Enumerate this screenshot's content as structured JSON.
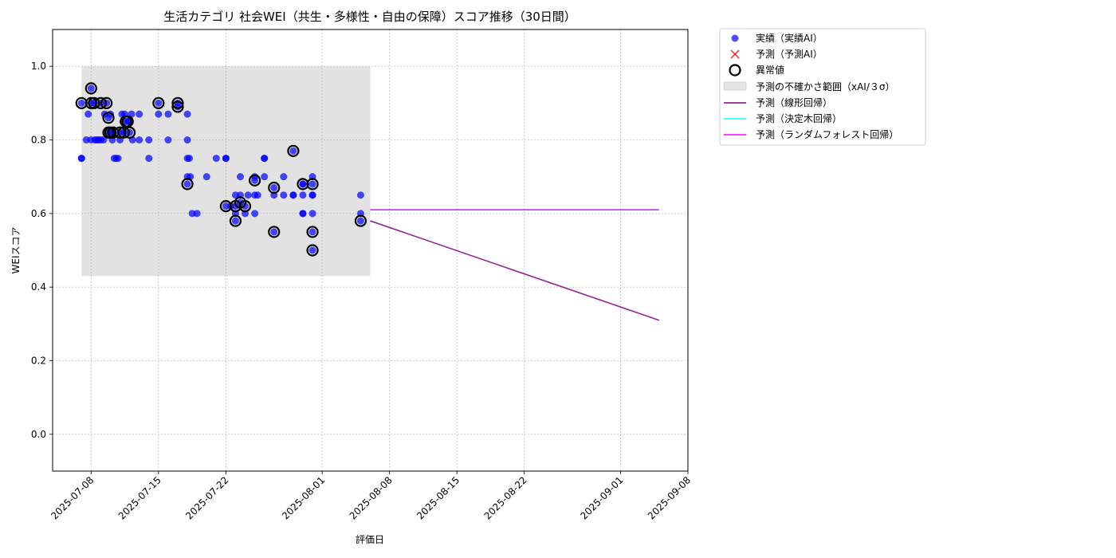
{
  "chart_data": {
    "type": "scatter",
    "title": "生活カテゴリ 社会WEI（共生・多様性・自由の保障）スコア推移（30日間）",
    "xlabel": "評価日",
    "ylabel": "WEIスコア",
    "xlim": [
      "2025-07-04",
      "2025-09-08"
    ],
    "ylim": [
      -0.1,
      1.1
    ],
    "x_ticks": [
      "2025-07-08",
      "2025-07-15",
      "2025-07-22",
      "2025-08-01",
      "2025-08-08",
      "2025-08-15",
      "2025-08-22",
      "2025-09-01",
      "2025-09-08"
    ],
    "y_ticks": [
      "0.0",
      "0.2",
      "0.4",
      "0.6",
      "0.8",
      "1.0"
    ],
    "grid": true,
    "legend_position": "outside-top-right",
    "colors": {
      "actual": "#0000ff",
      "predicted": "#ff0000",
      "band": "#d3d3d3",
      "linear": "#800080",
      "tree": "#00ffff",
      "forest": "#ff00ff"
    },
    "legend": {
      "actual": "実績（実績AI）",
      "predicted": "予測（予測AI）",
      "anomaly": "異常値",
      "band": "予測の不確かさ範囲（xAI/３σ）",
      "linear": "予測（線形回帰）",
      "tree": "予測（決定木回帰）",
      "forest": "予測（ランダムフォレスト回帰）"
    },
    "uncertainty_band": {
      "x": [
        "2025-07-07",
        "2025-08-06"
      ],
      "y": [
        0.43,
        1.0
      ]
    },
    "series": [
      {
        "name": "実績（実績AI）",
        "kind": "scatter",
        "points": [
          [
            "2025-07-07",
            0.75
          ],
          [
            "2025-07-07",
            0.9
          ],
          [
            "2025-07-07",
            0.75
          ],
          [
            "2025-07-07.5",
            0.8
          ],
          [
            "2025-07-07.7",
            0.87
          ],
          [
            "2025-07-08",
            0.94
          ],
          [
            "2025-07-08",
            0.8
          ],
          [
            "2025-07-08",
            0.9
          ],
          [
            "2025-07-08.3",
            0.9
          ],
          [
            "2025-07-08.4",
            0.8
          ],
          [
            "2025-07-08.6",
            0.8
          ],
          [
            "2025-07-08.8",
            0.8
          ],
          [
            "2025-07-09",
            0.9
          ],
          [
            "2025-07-09",
            0.8
          ],
          [
            "2025-07-09.3",
            0.8
          ],
          [
            "2025-07-09.4",
            0.87
          ],
          [
            "2025-07-09.6",
            0.9
          ],
          [
            "2025-07-09.8",
            0.86
          ],
          [
            "2025-07-09.8",
            0.82
          ],
          [
            "2025-07-10",
            0.82
          ],
          [
            "2025-07-10",
            0.87
          ],
          [
            "2025-07-10.2",
            0.8
          ],
          [
            "2025-07-10.3",
            0.82
          ],
          [
            "2025-07-10.4",
            0.75
          ],
          [
            "2025-07-10.6",
            0.75
          ],
          [
            "2025-07-10.8",
            0.75
          ],
          [
            "2025-07-11",
            0.82
          ],
          [
            "2025-07-11",
            0.8
          ],
          [
            "2025-07-11.2",
            0.87
          ],
          [
            "2025-07-11.4",
            0.82
          ],
          [
            "2025-07-11.5",
            0.87
          ],
          [
            "2025-07-11.6",
            0.85
          ],
          [
            "2025-07-11.8",
            0.85
          ],
          [
            "2025-07-12",
            0.82
          ],
          [
            "2025-07-12",
            0.85
          ],
          [
            "2025-07-12.2",
            0.87
          ],
          [
            "2025-07-12.3",
            0.8
          ],
          [
            "2025-07-13",
            0.87
          ],
          [
            "2025-07-13",
            0.8
          ],
          [
            "2025-07-14",
            0.8
          ],
          [
            "2025-07-14",
            0.75
          ],
          [
            "2025-07-15",
            0.9
          ],
          [
            "2025-07-15",
            0.87
          ],
          [
            "2025-07-16",
            0.87
          ],
          [
            "2025-07-16",
            0.8
          ],
          [
            "2025-07-17",
            0.9
          ],
          [
            "2025-07-17",
            0.89
          ],
          [
            "2025-07-18",
            0.87
          ],
          [
            "2025-07-18",
            0.8
          ],
          [
            "2025-07-18",
            0.75
          ],
          [
            "2025-07-18",
            0.7
          ],
          [
            "2025-07-18",
            0.68
          ],
          [
            "2025-07-18.2",
            0.75
          ],
          [
            "2025-07-18.3",
            0.7
          ],
          [
            "2025-07-18.5",
            0.6
          ],
          [
            "2025-07-19",
            0.6
          ],
          [
            "2025-07-20",
            0.7
          ],
          [
            "2025-07-21",
            0.75
          ],
          [
            "2025-07-22",
            0.75
          ],
          [
            "2025-07-22",
            0.75
          ],
          [
            "2025-07-22",
            0.62
          ],
          [
            "2025-07-22.5",
            0.62
          ],
          [
            "2025-07-23",
            0.6
          ],
          [
            "2025-07-23",
            0.58
          ],
          [
            "2025-07-23",
            0.62
          ],
          [
            "2025-07-23",
            0.65
          ],
          [
            "2025-07-23.5",
            0.63
          ],
          [
            "2025-07-23.5",
            0.65
          ],
          [
            "2025-07-23.5",
            0.7
          ],
          [
            "2025-07-24",
            0.62
          ],
          [
            "2025-07-24",
            0.6
          ],
          [
            "2025-07-24.3",
            0.65
          ],
          [
            "2025-07-25",
            0.65
          ],
          [
            "2025-07-25",
            0.6
          ],
          [
            "2025-07-25",
            0.69
          ],
          [
            "2025-07-25",
            0.7
          ],
          [
            "2025-07-25.3",
            0.65
          ],
          [
            "2025-07-26",
            0.75
          ],
          [
            "2025-07-26",
            0.75
          ],
          [
            "2025-07-26",
            0.7
          ],
          [
            "2025-07-27",
            0.55
          ],
          [
            "2025-07-27",
            0.67
          ],
          [
            "2025-07-27",
            0.65
          ],
          [
            "2025-07-28",
            0.65
          ],
          [
            "2025-07-28",
            0.7
          ],
          [
            "2025-07-29",
            0.65
          ],
          [
            "2025-07-29",
            0.65
          ],
          [
            "2025-07-29",
            0.77
          ],
          [
            "2025-07-30",
            0.68
          ],
          [
            "2025-07-30",
            0.65
          ],
          [
            "2025-07-30",
            0.6
          ],
          [
            "2025-07-30",
            0.6
          ],
          [
            "2025-07-30",
            0.68
          ],
          [
            "2025-07-31",
            0.55
          ],
          [
            "2025-07-31",
            0.5
          ],
          [
            "2025-07-31",
            0.6
          ],
          [
            "2025-07-31",
            0.65
          ],
          [
            "2025-07-31",
            0.68
          ],
          [
            "2025-07-31",
            0.7
          ],
          [
            "2025-07-31",
            0.65
          ],
          [
            "2025-08-05",
            0.58
          ],
          [
            "2025-08-05",
            0.6
          ],
          [
            "2025-08-05",
            0.65
          ]
        ]
      },
      {
        "name": "異常値",
        "kind": "anomaly",
        "points": [
          [
            "2025-07-07",
            0.9
          ],
          [
            "2025-07-08",
            0.94
          ],
          [
            "2025-07-08",
            0.9
          ],
          [
            "2025-07-08.3",
            0.9
          ],
          [
            "2025-07-09",
            0.9
          ],
          [
            "2025-07-09.6",
            0.9
          ],
          [
            "2025-07-09.8",
            0.86
          ],
          [
            "2025-07-09.8",
            0.82
          ],
          [
            "2025-07-10",
            0.82
          ],
          [
            "2025-07-10.3",
            0.82
          ],
          [
            "2025-07-11",
            0.82
          ],
          [
            "2025-07-11.4",
            0.82
          ],
          [
            "2025-07-11.6",
            0.85
          ],
          [
            "2025-07-11.8",
            0.85
          ],
          [
            "2025-07-12",
            0.82
          ],
          [
            "2025-07-15",
            0.9
          ],
          [
            "2025-07-17",
            0.9
          ],
          [
            "2025-07-17",
            0.89
          ],
          [
            "2025-07-18",
            0.68
          ],
          [
            "2025-07-22",
            0.62
          ],
          [
            "2025-07-23",
            0.58
          ],
          [
            "2025-07-23",
            0.62
          ],
          [
            "2025-07-23.5",
            0.63
          ],
          [
            "2025-07-24",
            0.62
          ],
          [
            "2025-07-25",
            0.69
          ],
          [
            "2025-07-27",
            0.55
          ],
          [
            "2025-07-27",
            0.67
          ],
          [
            "2025-07-29",
            0.77
          ],
          [
            "2025-07-30",
            0.68
          ],
          [
            "2025-07-31",
            0.55
          ],
          [
            "2025-07-31",
            0.5
          ],
          [
            "2025-07-31",
            0.68
          ],
          [
            "2025-08-05",
            0.58
          ]
        ]
      },
      {
        "name": "予測（線形回帰）",
        "kind": "line",
        "color_key": "linear",
        "points": [
          [
            "2025-08-06",
            0.58
          ],
          [
            "2025-09-05",
            0.31
          ]
        ]
      },
      {
        "name": "予測（決定木回帰）",
        "kind": "line",
        "color_key": "tree",
        "points": [
          [
            "2025-08-06",
            0.61
          ],
          [
            "2025-09-05",
            0.61
          ]
        ]
      },
      {
        "name": "予測（ランダムフォレスト回帰）",
        "kind": "line",
        "color_key": "forest",
        "points": [
          [
            "2025-08-06",
            0.61
          ],
          [
            "2025-09-05",
            0.61
          ]
        ]
      }
    ]
  }
}
